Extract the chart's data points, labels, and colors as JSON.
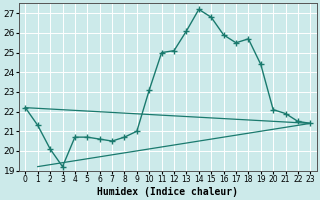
{
  "xlabel": "Humidex (Indice chaleur)",
  "background_color": "#cceaea",
  "grid_color": "#ffffff",
  "line_color": "#1a7a6e",
  "xlim": [
    -0.5,
    23.5
  ],
  "ylim": [
    19,
    27.5
  ],
  "yticks": [
    19,
    20,
    21,
    22,
    23,
    24,
    25,
    26,
    27
  ],
  "xticks": [
    0,
    1,
    2,
    3,
    4,
    5,
    6,
    7,
    8,
    9,
    10,
    11,
    12,
    13,
    14,
    15,
    16,
    17,
    18,
    19,
    20,
    21,
    22,
    23
  ],
  "line1_x": [
    0,
    1,
    2,
    3,
    4,
    5,
    6,
    7,
    8,
    9,
    10,
    11,
    12,
    13,
    14,
    15,
    16,
    17,
    18,
    19,
    20,
    21,
    22,
    23
  ],
  "line1_y": [
    22.2,
    21.3,
    20.1,
    19.2,
    20.7,
    20.7,
    20.6,
    20.5,
    20.7,
    21.0,
    23.1,
    25.0,
    25.1,
    26.1,
    27.2,
    26.8,
    25.9,
    25.5,
    25.7,
    24.4,
    22.1,
    21.9,
    21.5,
    21.4
  ],
  "line2_x": [
    0,
    23
  ],
  "line2_y": [
    22.2,
    21.4
  ],
  "line3_x": [
    1,
    23
  ],
  "line3_y": [
    19.2,
    21.4
  ],
  "font_size_label": 7,
  "font_size_tick_x": 5.5,
  "font_size_tick_y": 6.5
}
